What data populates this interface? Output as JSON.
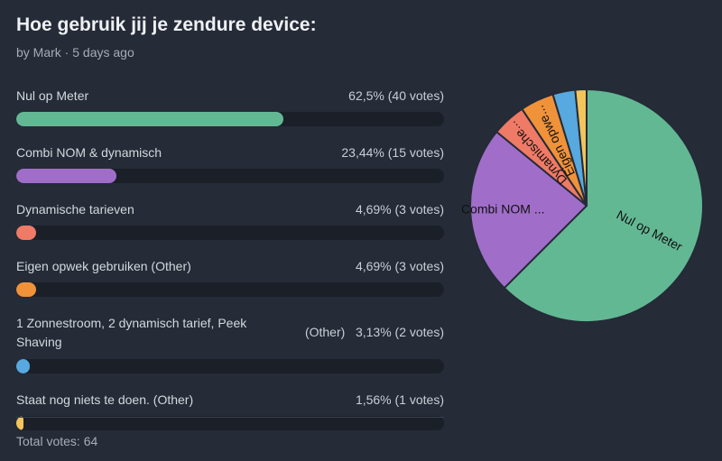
{
  "poll": {
    "title": "Hoe gebruik jij je zendure device:",
    "meta": "by Mark · 5 days ago",
    "total_label": "Total votes: 64"
  },
  "options": [
    {
      "label": "Nul op Meter",
      "value": "62,5% (40 votes)",
      "percent": 62.5,
      "votes": 40,
      "color": "#63b894"
    },
    {
      "label": "Combi NOM & dynamisch",
      "value": "23,44% (15 votes)",
      "percent": 23.44,
      "votes": 15,
      "color": "#a06ec9"
    },
    {
      "label": "Dynamische tarieven",
      "value": "4,69% (3 votes)",
      "percent": 4.69,
      "votes": 3,
      "color": "#ef7a66"
    },
    {
      "label": "Eigen opwek gebruiken (Other)",
      "value": "4,69% (3 votes)",
      "percent": 4.69,
      "votes": 3,
      "color": "#f0923a"
    },
    {
      "label": "1 Zonnestroom, 2 dynamisch tarief, Peek Shaving",
      "value": "(Other)   3,13% (2 votes)",
      "percent": 3.13,
      "votes": 2,
      "color": "#57a9df"
    },
    {
      "label": "Staat nog niets te doen. (Other)",
      "value": "1,56% (1 votes)",
      "percent": 1.56,
      "votes": 1,
      "color": "#f2c55c"
    }
  ],
  "chart_data": {
    "type": "pie",
    "labels": [
      "Nul op Meter",
      "Combi NOM ...",
      "Dynamische...",
      "Eigen opwe...",
      "",
      ""
    ],
    "values": [
      40,
      15,
      3,
      3,
      2,
      1
    ],
    "colors": [
      "#63b894",
      "#a06ec9",
      "#ef7a66",
      "#f0923a",
      "#57a9df",
      "#f2c55c"
    ]
  }
}
